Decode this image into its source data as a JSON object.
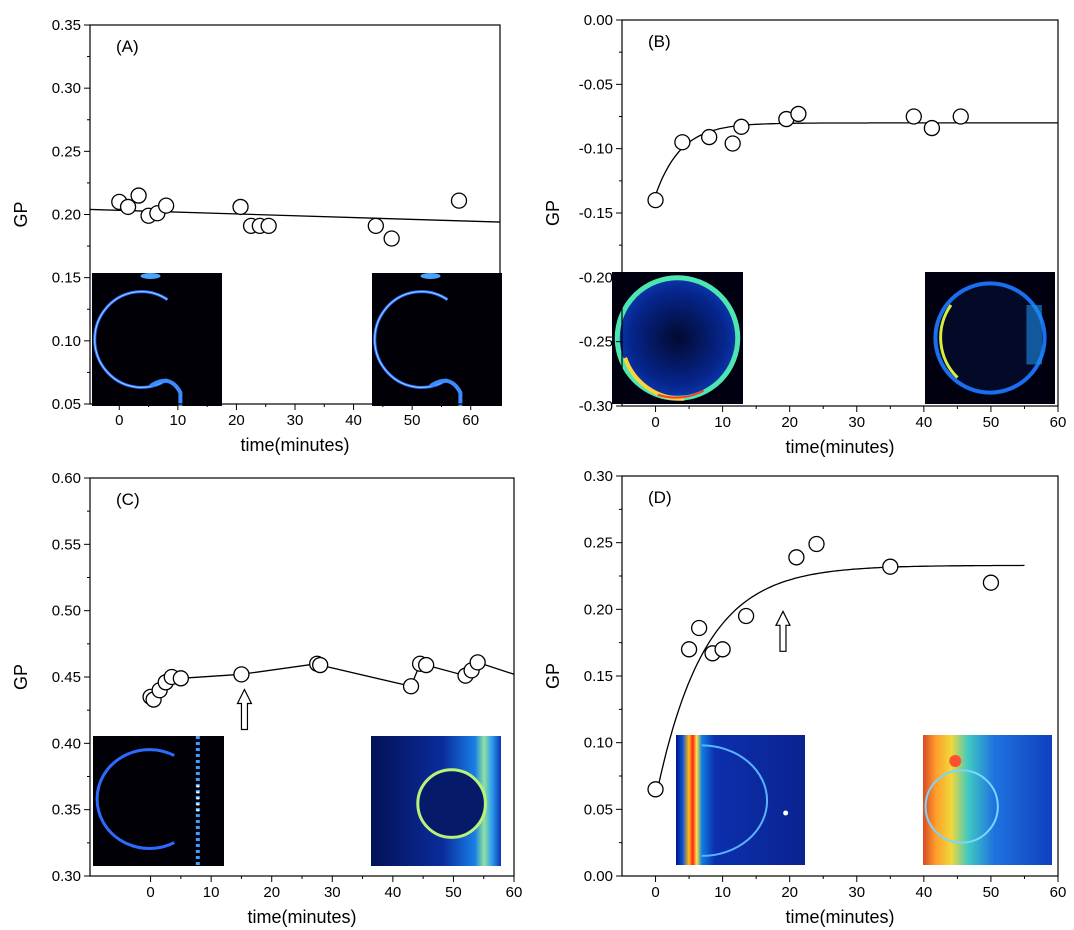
{
  "chart_data": [
    {
      "type": "scatter",
      "panel_label": "(A)",
      "xlabel": "time(minutes)",
      "ylabel": "GP",
      "xlim": [
        -5,
        65
      ],
      "ylim": [
        0.05,
        0.35
      ],
      "xticks": [
        0,
        10,
        20,
        30,
        40,
        50,
        60
      ],
      "yticks": [
        0.05,
        0.1,
        0.15,
        0.2,
        0.25,
        0.3,
        0.35
      ],
      "ytick_decimals": 2,
      "series": [
        {
          "x": [
            0,
            1.5,
            3.3,
            5,
            6.5,
            8,
            20.7,
            22.5,
            24,
            25.5,
            43.8,
            46.5,
            58
          ],
          "y": [
            0.21,
            0.206,
            0.215,
            0.199,
            0.201,
            0.207,
            0.206,
            0.191,
            0.191,
            0.191,
            0.191,
            0.181,
            0.211
          ]
        }
      ],
      "fit": {
        "kind": "linear",
        "x": [
          -5,
          65
        ],
        "y": [
          0.204,
          0.194
        ]
      },
      "arrows": [],
      "insets": [
        {
          "style": "ring-dark",
          "pos": "left"
        },
        {
          "style": "ring-dark",
          "pos": "right"
        }
      ]
    },
    {
      "type": "scatter",
      "panel_label": "(B)",
      "xlabel": "time(minutes)",
      "ylabel": "GP",
      "xlim": [
        -5,
        60
      ],
      "ylim": [
        -0.3,
        0.0
      ],
      "xticks": [
        0,
        10,
        20,
        30,
        40,
        50,
        60
      ],
      "yticks": [
        -0.3,
        -0.25,
        -0.2,
        -0.15,
        -0.1,
        -0.05,
        0.0
      ],
      "ytick_decimals": 2,
      "series": [
        {
          "x": [
            0,
            4,
            8,
            11.5,
            12.8,
            19.5,
            21.3,
            38.5,
            41.2,
            45.5
          ],
          "y": [
            -0.14,
            -0.095,
            -0.091,
            -0.096,
            -0.083,
            -0.077,
            -0.073,
            -0.075,
            -0.084,
            -0.075
          ]
        }
      ],
      "fit": {
        "kind": "exponential",
        "x0": 0,
        "x1": 60,
        "y_inf": -0.08,
        "y0": -0.136,
        "tau": 3.8
      },
      "arrows": [],
      "insets": [
        {
          "style": "disk-speckle",
          "pos": "left"
        },
        {
          "style": "ring-speckle",
          "pos": "right"
        }
      ]
    },
    {
      "type": "line",
      "panel_label": "(C)",
      "xlabel": "time(minutes)",
      "ylabel": "GP",
      "xlim": [
        -10,
        60
      ],
      "ylim": [
        0.3,
        0.6
      ],
      "xticks": [
        0,
        10,
        20,
        30,
        40,
        50,
        60
      ],
      "yticks": [
        0.3,
        0.35,
        0.4,
        0.45,
        0.5,
        0.55,
        0.6
      ],
      "ytick_decimals": 2,
      "series": [
        {
          "x": [
            0,
            0.5,
            1.5,
            2.5,
            3.5,
            5,
            15,
            27.5,
            28,
            43,
            44.5,
            45.5,
            52,
            53,
            54,
            60
          ],
          "y": [
            0.435,
            0.433,
            0.44,
            0.446,
            0.45,
            0.449,
            0.452,
            0.46,
            0.459,
            0.443,
            0.46,
            0.459,
            0.451,
            0.455,
            0.461,
            0.452
          ],
          "markers": 15
        }
      ],
      "fit": {
        "kind": "polyline"
      },
      "arrows": [
        {
          "x": 15.5,
          "y": 0.43
        }
      ],
      "insets": [
        {
          "style": "ring-stripe",
          "pos": "left"
        },
        {
          "style": "ring-field",
          "pos": "right"
        }
      ]
    },
    {
      "type": "scatter",
      "panel_label": "(D)",
      "xlabel": "time(minutes)",
      "ylabel": "GP",
      "xlim": [
        -5,
        60
      ],
      "ylim": [
        0.0,
        0.3
      ],
      "xticks": [
        0,
        10,
        20,
        30,
        40,
        50,
        60
      ],
      "yticks": [
        0.0,
        0.05,
        0.1,
        0.15,
        0.2,
        0.25,
        0.3
      ],
      "ytick_decimals": 2,
      "series": [
        {
          "x": [
            0,
            5,
            6.5,
            8.5,
            10,
            13.5,
            21,
            24,
            35,
            50
          ],
          "y": [
            0.065,
            0.17,
            0.186,
            0.167,
            0.17,
            0.195,
            0.239,
            0.249,
            0.232,
            0.22
          ]
        }
      ],
      "fit": {
        "kind": "exponential",
        "x0": 0.3,
        "x1": 55,
        "y_inf": 0.233,
        "y0": 0.065,
        "tau": 7.2
      },
      "arrows": [
        {
          "x": 19,
          "y": 0.188
        }
      ],
      "insets": [
        {
          "style": "stripe-left",
          "pos": "left"
        },
        {
          "style": "field-hot",
          "pos": "right"
        }
      ]
    }
  ]
}
